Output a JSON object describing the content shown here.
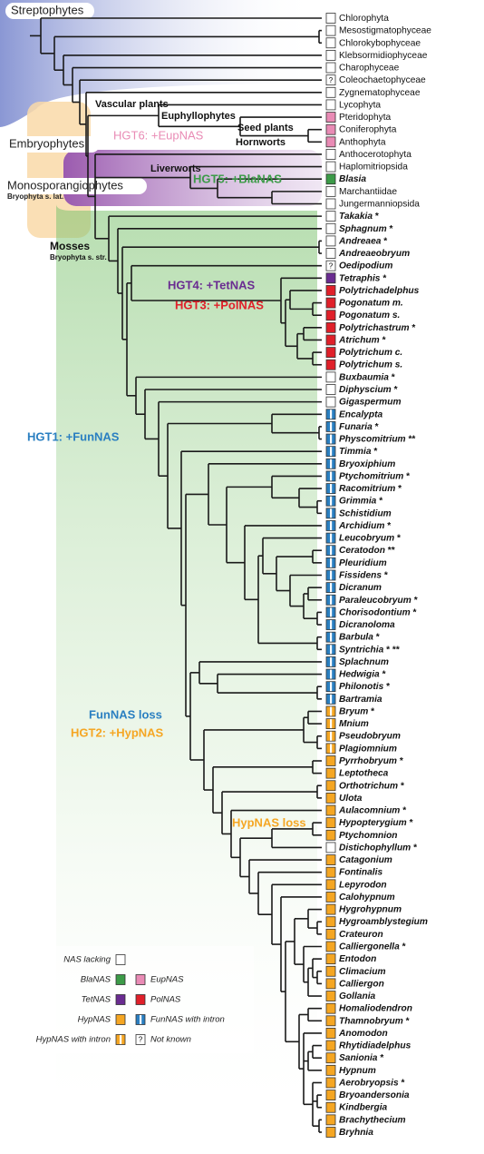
{
  "taxa": [
    {
      "name": "Chlorophyta"
    },
    {
      "name": "Mesostigmatophyceae"
    },
    {
      "name": "Chlorokybophyceae"
    },
    {
      "name": "Klebsormidiophyceae"
    },
    {
      "name": "Charophyceae"
    },
    {
      "name": "Coleochaetophyceae",
      "mark": "?"
    },
    {
      "name": "Zygnematophyceae"
    },
    {
      "name": "Lycophyta"
    },
    {
      "name": "Pteridophyta",
      "color": "#e98bb5"
    },
    {
      "name": "Coniferophyta",
      "color": "#e98bb5"
    },
    {
      "name": "Anthophyta",
      "color": "#e98bb5"
    },
    {
      "name": "Anthocerotophyta"
    },
    {
      "name": "Haplomitriopsida"
    },
    {
      "name": "Blasia",
      "color": "#3c9b48",
      "italic": true
    },
    {
      "name": "Marchantiidae"
    },
    {
      "name": "Jungermanniopsida"
    },
    {
      "name": "Takakia",
      "note": "*",
      "italic": true
    },
    {
      "name": "Sphagnum",
      "note": "*",
      "italic": true
    },
    {
      "name": "Andreaea",
      "note": "*",
      "italic": true
    },
    {
      "name": "Andreaeobryum",
      "italic": true
    },
    {
      "name": "Oedipodium",
      "mark": "?",
      "italic": true
    },
    {
      "name": "Tetraphis",
      "note": "*",
      "color": "#6a2c91",
      "italic": true
    },
    {
      "name": "Polytrichadelphus",
      "color": "#e0202a",
      "italic": true
    },
    {
      "name": "Pogonatum m.",
      "color": "#e0202a",
      "italic": true
    },
    {
      "name": "Pogonatum s.",
      "color": "#e0202a",
      "italic": true
    },
    {
      "name": "Polytrichastrum",
      "note": "*",
      "color": "#e0202a",
      "italic": true
    },
    {
      "name": "Atrichum",
      "note": "*",
      "color": "#e0202a",
      "italic": true
    },
    {
      "name": "Polytrichum c.",
      "color": "#e0202a",
      "italic": true
    },
    {
      "name": "Polytrichum s.",
      "color": "#e0202a",
      "italic": true
    },
    {
      "name": "Buxbaumia",
      "note": "*",
      "italic": true
    },
    {
      "name": "Diphyscium",
      "note": "*",
      "italic": true
    },
    {
      "name": "Gigaspermum",
      "italic": true
    },
    {
      "name": "Encalypta",
      "color": "#2a7fc1",
      "intron": true,
      "italic": true
    },
    {
      "name": "Funaria",
      "note": "*",
      "color": "#2a7fc1",
      "intron": true,
      "italic": true
    },
    {
      "name": "Physcomitrium",
      "note": "**",
      "color": "#2a7fc1",
      "intron": true,
      "italic": true
    },
    {
      "name": "Timmia",
      "note": "*",
      "color": "#2a7fc1",
      "intron": true,
      "italic": true
    },
    {
      "name": "Bryoxiphium",
      "color": "#2a7fc1",
      "intron": true,
      "italic": true
    },
    {
      "name": "Ptychomitrium",
      "note": "*",
      "color": "#2a7fc1",
      "intron": true,
      "italic": true
    },
    {
      "name": "Racomitrium",
      "note": "*",
      "color": "#2a7fc1",
      "intron": true,
      "italic": true
    },
    {
      "name": "Grimmia",
      "note": "*",
      "color": "#2a7fc1",
      "intron": true,
      "italic": true
    },
    {
      "name": "Schistidium",
      "color": "#2a7fc1",
      "intron": true,
      "italic": true
    },
    {
      "name": "Archidium",
      "note": "*",
      "color": "#2a7fc1",
      "intron": true,
      "italic": true
    },
    {
      "name": "Leucobryum",
      "note": "*",
      "color": "#2a7fc1",
      "intron": true,
      "italic": true
    },
    {
      "name": "Ceratodon",
      "note": "**",
      "color": "#2a7fc1",
      "intron": true,
      "italic": true
    },
    {
      "name": "Pleuridium",
      "color": "#2a7fc1",
      "intron": true,
      "italic": true
    },
    {
      "name": "Fissidens",
      "note": "*",
      "color": "#2a7fc1",
      "intron": true,
      "italic": true
    },
    {
      "name": "Dicranum",
      "color": "#2a7fc1",
      "intron": true,
      "italic": true
    },
    {
      "name": "Paraleucobryum",
      "note": "*",
      "color": "#2a7fc1",
      "intron": true,
      "italic": true
    },
    {
      "name": "Chorisodontium",
      "note": "*",
      "color": "#2a7fc1",
      "intron": true,
      "italic": true
    },
    {
      "name": "Dicranoloma",
      "color": "#2a7fc1",
      "intron": true,
      "italic": true
    },
    {
      "name": "Barbula",
      "note": "*",
      "color": "#2a7fc1",
      "intron": true,
      "italic": true
    },
    {
      "name": "Syntrichia",
      "note": "* **",
      "color": "#2a7fc1",
      "intron": true,
      "italic": true
    },
    {
      "name": "Splachnum",
      "color": "#2a7fc1",
      "intron": true,
      "italic": true
    },
    {
      "name": "Hedwigia",
      "note": "*",
      "color": "#2a7fc1",
      "intron": true,
      "italic": true
    },
    {
      "name": "Philonotis",
      "note": "*",
      "color": "#2a7fc1",
      "intron": true,
      "italic": true
    },
    {
      "name": "Bartramia",
      "color": "#2a7fc1",
      "intron": true,
      "italic": true
    },
    {
      "name": "Bryum",
      "note": "*",
      "color": "#f5a623",
      "intron": true,
      "italic": true
    },
    {
      "name": "Mnium",
      "color": "#f5a623",
      "intron": true,
      "italic": true
    },
    {
      "name": "Pseudobryum",
      "color": "#f5a623",
      "intron": true,
      "italic": true
    },
    {
      "name": "Plagiomnium",
      "color": "#f5a623",
      "intron": true,
      "italic": true
    },
    {
      "name": "Pyrrhobryum",
      "note": "*",
      "color": "#f5a623",
      "italic": true
    },
    {
      "name": "Leptotheca",
      "color": "#f5a623",
      "italic": true
    },
    {
      "name": "Orthotrichum",
      "note": "*",
      "color": "#f5a623",
      "italic": true
    },
    {
      "name": "Ulota",
      "color": "#f5a623",
      "italic": true
    },
    {
      "name": "Aulacomnium",
      "note": "*",
      "color": "#f5a623",
      "italic": true
    },
    {
      "name": "Hypopterygium",
      "note": "*",
      "color": "#f5a623",
      "italic": true
    },
    {
      "name": "Ptychomnion",
      "color": "#f5a623",
      "italic": true
    },
    {
      "name": "Distichophyllum",
      "note": "*",
      "italic": true
    },
    {
      "name": "Catagonium",
      "color": "#f5a623",
      "italic": true
    },
    {
      "name": "Fontinalis",
      "color": "#f5a623",
      "italic": true
    },
    {
      "name": "Lepyrodon",
      "color": "#f5a623",
      "italic": true
    },
    {
      "name": "Calohypnum",
      "color": "#f5a623",
      "italic": true
    },
    {
      "name": "Hygrohypnum",
      "color": "#f5a623",
      "italic": true
    },
    {
      "name": "Hygroamblystegium",
      "color": "#f5a623",
      "italic": true
    },
    {
      "name": "Crateuron",
      "color": "#f5a623",
      "italic": true
    },
    {
      "name": "Calliergonella",
      "note": "*",
      "color": "#f5a623",
      "italic": true
    },
    {
      "name": "Entodon",
      "color": "#f5a623",
      "italic": true
    },
    {
      "name": "Climacium",
      "color": "#f5a623",
      "italic": true
    },
    {
      "name": "Calliergon",
      "color": "#f5a623",
      "italic": true
    },
    {
      "name": "Gollania",
      "color": "#f5a623",
      "italic": true
    },
    {
      "name": "Homaliodendron",
      "color": "#f5a623",
      "italic": true
    },
    {
      "name": "Thamnobryum",
      "note": "*",
      "color": "#f5a623",
      "italic": true
    },
    {
      "name": "Anomodon",
      "color": "#f5a623",
      "italic": true
    },
    {
      "name": "Rhytidiadelphus",
      "color": "#f5a623",
      "italic": true
    },
    {
      "name": "Sanionia",
      "note": "*",
      "color": "#f5a623",
      "italic": true
    },
    {
      "name": "Hypnum",
      "color": "#f5a623",
      "italic": true
    },
    {
      "name": "Aerobryopsis",
      "note": "*",
      "color": "#f5a623",
      "italic": true
    },
    {
      "name": "Bryoandersonia",
      "color": "#f5a623",
      "italic": true
    },
    {
      "name": "Kindbergia",
      "color": "#f5a623",
      "italic": true
    },
    {
      "name": "Brachythecium",
      "color": "#f5a623",
      "italic": true
    },
    {
      "name": "Bryhnia",
      "color": "#f5a623",
      "italic": true
    }
  ],
  "annotations": [
    {
      "text": "Streptophytes",
      "color": "#222222"
    },
    {
      "text": "Vascular plants",
      "color": "#111111"
    },
    {
      "text": "Euphyllophytes",
      "color": "#111111"
    },
    {
      "text": "Seed plants",
      "color": "#111111"
    },
    {
      "text": "HGT6: +EupNAS",
      "color": "#e98bb5"
    },
    {
      "text": "Embryophytes",
      "color": "#222222"
    },
    {
      "text": "Hornworts",
      "color": "#111111"
    },
    {
      "text": "Liverworts",
      "color": "#111111"
    },
    {
      "text": "HGT5: +BlaNAS",
      "color": "#3c9b48"
    },
    {
      "text": "Monosporangiophytes",
      "color": "#222222"
    },
    {
      "text": "Bryophyta s. lat.",
      "color": "#222222"
    },
    {
      "text": "Mosses",
      "color": "#111111"
    },
    {
      "text": "Bryophyta s. str.",
      "color": "#111111"
    },
    {
      "text": "HGT4: +TetNAS",
      "color": "#6a2c91"
    },
    {
      "text": "HGT3: +PolNAS",
      "color": "#e0202a"
    },
    {
      "text": "HGT1: +FunNAS",
      "color": "#2a7fc1"
    },
    {
      "text": "FunNAS loss",
      "color": "#2a7fc1"
    },
    {
      "text": "HGT2: +HypNAS",
      "color": "#f5a623"
    },
    {
      "text": "HypNAS loss",
      "color": "#f5a623"
    }
  ],
  "legend": [
    {
      "label": "NAS lacking",
      "color": "#ffffff"
    },
    {
      "label": "BlaNAS",
      "color": "#3c9b48"
    },
    {
      "label": "EupNAS",
      "color": "#e98bb5"
    },
    {
      "label": "TetNAS",
      "color": "#6a2c91"
    },
    {
      "label": "PolNAS",
      "color": "#e0202a"
    },
    {
      "label": "HypNAS",
      "color": "#f5a623"
    },
    {
      "label": "FunNAS with intron",
      "color": "#2a7fc1",
      "intron": true
    },
    {
      "label": "HypNAS with intron",
      "color": "#f5a623",
      "intron": true
    },
    {
      "label": "Not known",
      "mark": "?"
    }
  ]
}
